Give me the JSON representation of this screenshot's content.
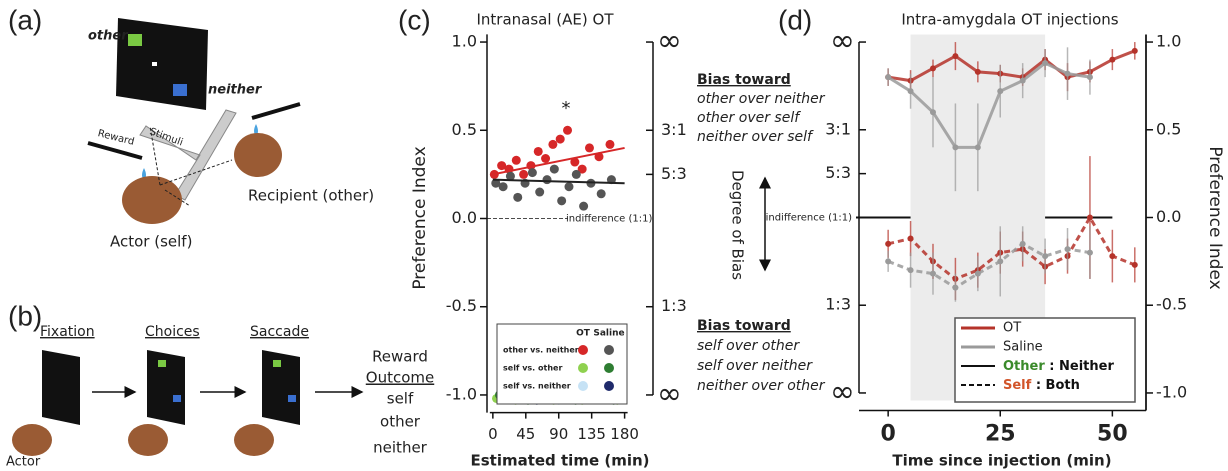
{
  "panel_labels": [
    "(a)",
    "(b)",
    "(c)",
    "(d)"
  ],
  "diagram_a": {
    "screen_labels": [
      "other",
      "neither"
    ],
    "reward": "Reward",
    "stimuli": "Stimuli",
    "recipient": "Recipient (other)",
    "actor": "Actor (self)"
  },
  "diagram_b": {
    "steps": [
      "Fixation",
      "Choices",
      "Saccade"
    ],
    "reward": "Reward",
    "outcome": "Outcome",
    "outcomes": [
      "self",
      "other",
      "neither"
    ],
    "actor": "Actor"
  },
  "bias_annotation": {
    "top_heading": "Bias toward",
    "top_lines": [
      "other over neither",
      "other over self",
      "neither over self"
    ],
    "bottom_heading": "Bias toward",
    "bottom_lines": [
      "self over other",
      "self over neither",
      "neither over other"
    ],
    "degree": "Degree of Bias"
  },
  "chart_data": [
    {
      "type": "scatter",
      "title": "Intranasal (AE) OT",
      "x_label": "Estimated time (min)",
      "y_label": "Preference Index",
      "xlim": [
        -8,
        186
      ],
      "xticks": [
        0,
        45,
        90,
        135,
        180
      ],
      "ylim": [
        -1.1,
        1.1
      ],
      "yticks": [
        {
          "value": -1,
          "label": "-1.0"
        },
        {
          "value": -0.5,
          "label": "-0.5"
        },
        {
          "value": 0,
          "label": "0.0"
        },
        {
          "value": 0.5,
          "label": "0.5"
        },
        {
          "value": 1,
          "label": "1.0"
        }
      ],
      "y2lim": [
        -1.1,
        1.1
      ],
      "y2ticks": [
        {
          "value": 1,
          "label": "∞"
        },
        {
          "value": 0.5,
          "label": "3:1"
        },
        {
          "value": 0.25,
          "label": "5:3"
        },
        {
          "value": -0.5,
          "label": "1:3"
        },
        {
          "value": -1,
          "label": "∞"
        }
      ],
      "reference_line": {
        "value": 0,
        "label": "indifference (1:1)"
      },
      "annotation": {
        "text": "*",
        "x": 100,
        "y": 0.62
      },
      "groups": [
        {
          "name": "self vs. neither",
          "series": [
            {
              "name": "OT",
              "color": "#c6e2f5",
              "x": [
                10,
                50,
                90,
                130,
                165
              ],
              "values": [
                -1.02,
                -1.01,
                -1.03,
                -1.02,
                -1.01
              ]
            },
            {
              "name": "Saline",
              "color": "#1f2a6b",
              "x": [
                20,
                60,
                100,
                140,
                172
              ],
              "values": [
                -1.01,
                -1.03,
                -1.02,
                -1.01,
                -1.02
              ]
            }
          ]
        },
        {
          "name": "self vs. other",
          "series": [
            {
              "name": "OT",
              "color": "#8fd14f",
              "x": [
                5,
                18,
                31,
                44,
                57,
                70,
                83,
                96,
                109,
                122,
                135,
                148,
                161,
                170
              ],
              "values": [
                -1.02,
                -1.0,
                -1.03,
                -1.01,
                -1.02,
                -1.0,
                -1.03,
                -1.02,
                -1.01,
                -1.03,
                -1.0,
                -1.02,
                -1.01,
                -1.03
              ]
            },
            {
              "name": "Saline",
              "color": "#2e7d32",
              "x": [
                9,
                22,
                35,
                48,
                61,
                74,
                87,
                100,
                113,
                126,
                139,
                152,
                165,
                175
              ],
              "values": [
                -1.0,
                -1.02,
                -1.01,
                -1.03,
                -1.0,
                -0.98,
                -1.02,
                -1.0,
                -1.03,
                -1.01,
                -1.02,
                -1.0,
                -1.03,
                -1.02
              ]
            }
          ]
        },
        {
          "name": "other vs. neither",
          "series": [
            {
              "name": "OT",
              "color": "#d62728",
              "x": [
                2,
                12,
                22,
                32,
                42,
                52,
                62,
                72,
                82,
                92,
                102,
                112,
                122,
                132,
                145,
                160
              ],
              "values": [
                0.25,
                0.3,
                0.28,
                0.33,
                0.25,
                0.3,
                0.38,
                0.34,
                0.42,
                0.45,
                0.5,
                0.32,
                0.28,
                0.4,
                0.35,
                0.42
              ],
              "fit_x": [
                0,
                180
              ],
              "fit": [
                0.25,
                0.4
              ]
            },
            {
              "name": "Saline",
              "color": "#555555",
              "x": [
                4,
                14,
                24,
                34,
                44,
                54,
                64,
                74,
                84,
                94,
                104,
                114,
                124,
                134,
                148,
                162
              ],
              "values": [
                0.2,
                0.18,
                0.24,
                0.12,
                0.2,
                0.26,
                0.15,
                0.22,
                0.28,
                0.1,
                0.18,
                0.25,
                0.07,
                0.2,
                0.14,
                0.22
              ],
              "fit_x": [
                0,
                180
              ],
              "fit": [
                0.22,
                0.2
              ]
            }
          ]
        }
      ]
    },
    {
      "type": "line",
      "title": "Intra-amygdala OT injections",
      "x_label": "Time since injection (min)",
      "y_label": "Preference Index",
      "xlim": [
        -6.5,
        57.5
      ],
      "xticks": [
        0,
        25,
        50
      ],
      "ylim": [
        -1.1,
        1.1
      ],
      "yticks": [
        {
          "value": -1,
          "label": "-1.0"
        },
        {
          "value": -0.5,
          "label": "-0.5"
        },
        {
          "value": 0,
          "label": "0.0"
        },
        {
          "value": 0.5,
          "label": "0.5"
        },
        {
          "value": 1,
          "label": "1.0"
        }
      ],
      "y2lim": [
        -1.1,
        1.1
      ],
      "y2ticks": [
        {
          "value": 1,
          "label": "∞"
        },
        {
          "value": 0.5,
          "label": "3:1"
        },
        {
          "value": 0.25,
          "label": "5:3"
        },
        {
          "value": -0.5,
          "label": "1:3"
        },
        {
          "value": -1,
          "label": "∞"
        }
      ],
      "reference_line": {
        "value": 0,
        "label": "indifference (1:1)"
      },
      "shade": [
        5,
        35
      ],
      "x": [
        0,
        5,
        10,
        15,
        20,
        25,
        30,
        35,
        40,
        45,
        50,
        55
      ],
      "line_styles": [
        {
          "label": "Other",
          "label_color": "#3a8a2a",
          "rest": " : Neither",
          "dash": false
        },
        {
          "label": "Self",
          "label_color": "#d2552a",
          "rest": " : Both",
          "dash": true
        }
      ],
      "series": [
        {
          "name": "OT",
          "color": "#b5332a",
          "lines": [
            {
              "values": [
                0.8,
                0.78,
                0.85,
                0.92,
                0.83,
                0.82,
                0.8,
                0.9,
                0.8,
                0.83,
                0.9,
                0.95
              ],
              "errors": [
                0.05,
                0.06,
                0.05,
                0.08,
                0.06,
                0.05,
                0.05,
                0.06,
                0.08,
                0.06,
                0.06,
                0.05
              ]
            },
            {
              "values": [
                -0.15,
                -0.12,
                -0.25,
                -0.35,
                -0.3,
                -0.2,
                -0.18,
                -0.28,
                -0.22,
                0.0,
                -0.22,
                -0.27
              ],
              "errors": [
                0.08,
                0.1,
                0.1,
                0.12,
                0.1,
                0.12,
                0.1,
                0.1,
                0.1,
                0.35,
                0.15,
                0.1
              ]
            }
          ]
        },
        {
          "name": "Saline",
          "color": "#9a9a9a",
          "lines": [
            {
              "values": [
                0.8,
                0.72,
                0.6,
                0.4,
                0.4,
                0.72,
                0.78,
                0.88,
                0.82,
                0.8,
                null,
                null
              ],
              "errors": [
                0.05,
                0.1,
                0.2,
                0.25,
                0.25,
                0.15,
                0.1,
                0.08,
                0.15,
                0.1,
                null,
                null
              ]
            },
            {
              "values": [
                -0.25,
                -0.3,
                -0.32,
                -0.4,
                -0.32,
                -0.25,
                -0.15,
                -0.22,
                -0.18,
                -0.2,
                null,
                null
              ],
              "errors": [
                0.06,
                0.1,
                0.12,
                0.08,
                0.1,
                0.2,
                0.1,
                0.1,
                0.12,
                0.15,
                null,
                null
              ]
            }
          ]
        }
      ]
    }
  ]
}
